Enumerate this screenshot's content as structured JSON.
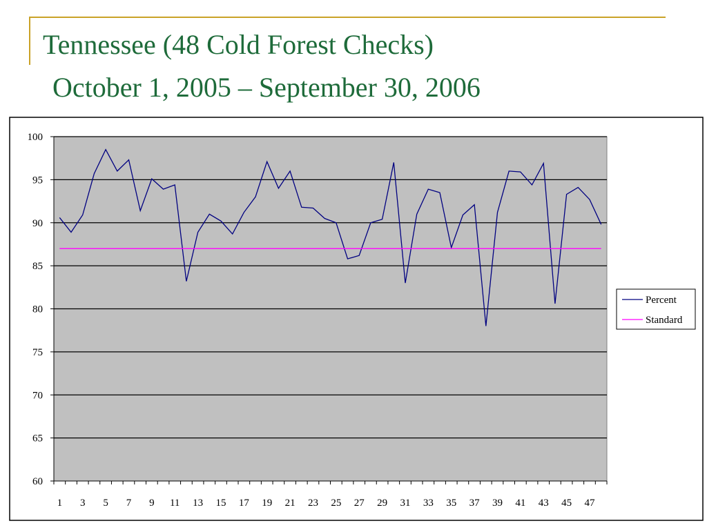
{
  "slide": {
    "title": "Tennessee (48 Cold Forest Checks)",
    "subtitle": "October 1, 2005 – September 30, 2006"
  },
  "colors": {
    "accent": "#c9a227",
    "title": "#1e6b3a",
    "plot_bg": "#c0c0c0",
    "percent_line": "#000080",
    "standard_line": "#ff00ff",
    "gridline": "#000000"
  },
  "chart_data": {
    "type": "line",
    "x": [
      1,
      2,
      3,
      4,
      5,
      6,
      7,
      8,
      9,
      10,
      11,
      12,
      13,
      14,
      15,
      16,
      17,
      18,
      19,
      20,
      21,
      22,
      23,
      24,
      25,
      26,
      27,
      28,
      29,
      30,
      31,
      32,
      33,
      34,
      35,
      36,
      37,
      38,
      39,
      40,
      41,
      42,
      43,
      44,
      45,
      46,
      47,
      48
    ],
    "x_tick_labels": [
      "1",
      "3",
      "5",
      "7",
      "9",
      "11",
      "13",
      "15",
      "17",
      "19",
      "21",
      "23",
      "25",
      "27",
      "29",
      "31",
      "33",
      "35",
      "37",
      "39",
      "41",
      "43",
      "45",
      "47"
    ],
    "y_ticks": [
      60,
      65,
      70,
      75,
      80,
      85,
      90,
      95,
      100
    ],
    "ylim": [
      60,
      100
    ],
    "grid": true,
    "legend_position": "right",
    "series": [
      {
        "name": "Percent",
        "values": [
          90.6,
          88.9,
          90.9,
          95.7,
          98.5,
          96.0,
          97.3,
          91.4,
          95.1,
          93.9,
          94.4,
          83.2,
          88.9,
          91.0,
          90.2,
          88.7,
          91.2,
          93.0,
          97.1,
          94.0,
          96.0,
          91.8,
          91.7,
          90.5,
          90.0,
          85.8,
          86.2,
          90.0,
          90.4,
          97.0,
          83.0,
          91.0,
          93.9,
          93.5,
          87.1,
          90.9,
          92.1,
          78.0,
          91.2,
          96.0,
          95.9,
          94.4,
          96.9,
          80.6,
          93.3,
          94.1,
          92.7,
          89.8
        ]
      },
      {
        "name": "Standard",
        "values": [
          87,
          87,
          87,
          87,
          87,
          87,
          87,
          87,
          87,
          87,
          87,
          87,
          87,
          87,
          87,
          87,
          87,
          87,
          87,
          87,
          87,
          87,
          87,
          87,
          87,
          87,
          87,
          87,
          87,
          87,
          87,
          87,
          87,
          87,
          87,
          87,
          87,
          87,
          87,
          87,
          87,
          87,
          87,
          87,
          87,
          87,
          87,
          87
        ]
      }
    ]
  }
}
